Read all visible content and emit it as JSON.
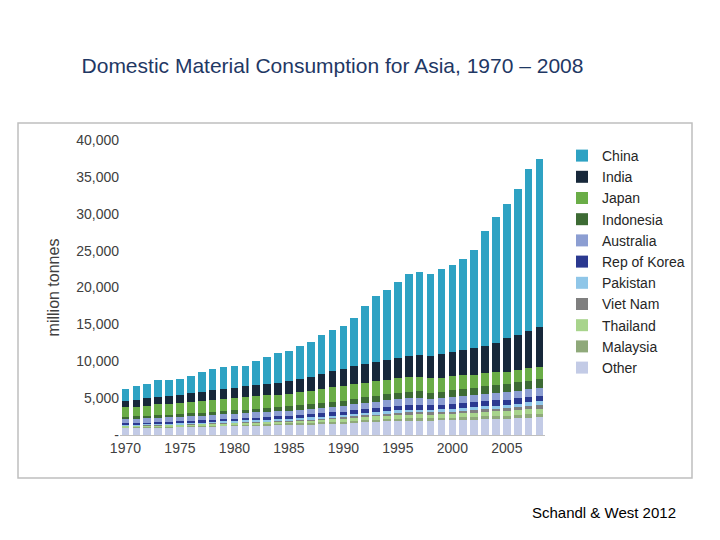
{
  "chart_data": {
    "type": "bar",
    "title": "Domestic Material Consumption for Asia, 1970 – 2008",
    "y_label": "million tonnes",
    "annotations": [
      "Schandl & West 2012"
    ],
    "stacked": true,
    "grid": false,
    "legend": "right",
    "x": [
      1970,
      1971,
      1972,
      1973,
      1974,
      1975,
      1976,
      1977,
      1978,
      1979,
      1980,
      1981,
      1982,
      1983,
      1984,
      1985,
      1986,
      1987,
      1988,
      1989,
      1990,
      1991,
      1992,
      1993,
      1994,
      1995,
      1996,
      1997,
      1998,
      1999,
      2000,
      2001,
      2002,
      2003,
      2004,
      2005,
      2006,
      2007,
      2008
    ],
    "xlim": [
      1969.5,
      2008.5
    ],
    "xticks": [
      1970,
      1975,
      1980,
      1985,
      1990,
      1995,
      2000,
      2005
    ],
    "ylim": [
      0,
      40000
    ],
    "yticks": [
      {
        "value": 0,
        "label": "-"
      },
      {
        "value": 5000,
        "label": "5,000"
      },
      {
        "value": 10000,
        "label": "10,000"
      },
      {
        "value": 15000,
        "label": "15,000"
      },
      {
        "value": 20000,
        "label": "20,000"
      },
      {
        "value": 25000,
        "label": "25,000"
      },
      {
        "value": 30000,
        "label": "30,000"
      },
      {
        "value": 35000,
        "label": "35,000"
      },
      {
        "value": 40000,
        "label": "40,000"
      }
    ],
    "series": [
      {
        "name": "Other",
        "color": "#c3cbe6",
        "values": [
          1000,
          1020,
          1040,
          1060,
          1080,
          1100,
          1130,
          1160,
          1190,
          1220,
          1250,
          1280,
          1310,
          1340,
          1370,
          1400,
          1440,
          1480,
          1520,
          1560,
          1600,
          1660,
          1720,
          1780,
          1840,
          1900,
          1920,
          1940,
          1960,
          1980,
          2000,
          2040,
          2080,
          2120,
          2160,
          2200,
          2270,
          2330,
          2400
        ]
      },
      {
        "name": "Malaysia",
        "color": "#8fa97a",
        "values": [
          80,
          84,
          88,
          92,
          96,
          100,
          106,
          112,
          118,
          124,
          130,
          138,
          146,
          154,
          162,
          170,
          182,
          194,
          206,
          218,
          230,
          250,
          270,
          290,
          310,
          330,
          340,
          340,
          320,
          340,
          350,
          360,
          380,
          400,
          410,
          420,
          440,
          460,
          480
        ]
      },
      {
        "name": "Thailand",
        "color": "#a8d48c",
        "values": [
          150,
          160,
          170,
          180,
          190,
          200,
          210,
          220,
          230,
          240,
          250,
          260,
          270,
          280,
          290,
          300,
          320,
          350,
          380,
          400,
          420,
          450,
          480,
          510,
          540,
          560,
          580,
          570,
          520,
          540,
          550,
          570,
          590,
          610,
          630,
          650,
          670,
          690,
          700
        ]
      },
      {
        "name": "Viet Nam",
        "color": "#7f7f7f",
        "values": [
          80,
          82,
          84,
          86,
          88,
          90,
          92,
          94,
          96,
          98,
          100,
          104,
          108,
          112,
          116,
          120,
          126,
          132,
          138,
          144,
          150,
          164,
          178,
          192,
          206,
          220,
          232,
          244,
          256,
          268,
          280,
          300,
          320,
          350,
          380,
          400,
          430,
          470,
          500
        ]
      },
      {
        "name": "Pakistan",
        "color": "#8fc6e8",
        "values": [
          120,
          126,
          132,
          138,
          144,
          150,
          156,
          162,
          168,
          174,
          180,
          190,
          200,
          210,
          220,
          230,
          240,
          250,
          260,
          270,
          280,
          290,
          300,
          310,
          320,
          330,
          338,
          346,
          354,
          362,
          370,
          380,
          390,
          400,
          410,
          420,
          440,
          460,
          480
        ]
      },
      {
        "name": "Rep of Korea",
        "color": "#2b3990",
        "values": [
          150,
          164,
          178,
          192,
          206,
          220,
          236,
          252,
          268,
          284,
          300,
          316,
          332,
          348,
          364,
          380,
          400,
          420,
          440,
          460,
          480,
          520,
          560,
          600,
          630,
          650,
          680,
          690,
          600,
          630,
          650,
          660,
          680,
          700,
          710,
          720,
          740,
          760,
          780
        ]
      },
      {
        "name": "Australia",
        "color": "#8c9ed2",
        "values": [
          550,
          560,
          570,
          580,
          590,
          600,
          616,
          632,
          648,
          664,
          680,
          688,
          696,
          704,
          712,
          720,
          736,
          752,
          768,
          784,
          800,
          810,
          820,
          830,
          840,
          850,
          860,
          870,
          880,
          890,
          900,
          920,
          940,
          960,
          980,
          1000,
          1020,
          1040,
          1050
        ]
      },
      {
        "name": "Indonesia",
        "color": "#3d6b34",
        "values": [
          300,
          316,
          332,
          348,
          364,
          380,
          394,
          408,
          422,
          436,
          450,
          470,
          490,
          510,
          530,
          550,
          580,
          610,
          640,
          670,
          700,
          730,
          760,
          790,
          820,
          850,
          880,
          900,
          860,
          880,
          950,
          980,
          1010,
          1040,
          1070,
          1100,
          1130,
          1160,
          1200
        ]
      },
      {
        "name": "Japan",
        "color": "#6aad47",
        "values": [
          1300,
          1350,
          1400,
          1500,
          1500,
          1550,
          1580,
          1620,
          1660,
          1700,
          1700,
          1700,
          1700,
          1700,
          1700,
          1700,
          1750,
          1820,
          1900,
          1960,
          2000,
          2020,
          2030,
          2000,
          2010,
          2000,
          2010,
          1980,
          1920,
          1900,
          1900,
          1860,
          1800,
          1760,
          1730,
          1700,
          1680,
          1650,
          1600
        ]
      },
      {
        "name": "India",
        "color": "#17283a",
        "values": [
          900,
          930,
          960,
          1000,
          1040,
          1100,
          1160,
          1220,
          1280,
          1340,
          1400,
          1460,
          1520,
          1580,
          1640,
          1700,
          1800,
          1920,
          2040,
          2160,
          2300,
          2400,
          2500,
          2600,
          2700,
          2800,
          2900,
          3000,
          3100,
          3200,
          3300,
          3400,
          3550,
          3750,
          4050,
          4500,
          4800,
          5100,
          5400
        ]
      },
      {
        "name": "China",
        "color": "#2ea2c3",
        "values": [
          1670,
          1810,
          1950,
          2220,
          2100,
          2110,
          2320,
          2620,
          2920,
          2920,
          2860,
          2790,
          3230,
          3660,
          4000,
          4130,
          4430,
          4670,
          5210,
          5670,
          5840,
          6510,
          7880,
          9000,
          9480,
          10310,
          11060,
          11220,
          11030,
          11510,
          11850,
          12430,
          13360,
          15510,
          16970,
          18190,
          19780,
          21980,
          22810
        ]
      }
    ]
  }
}
